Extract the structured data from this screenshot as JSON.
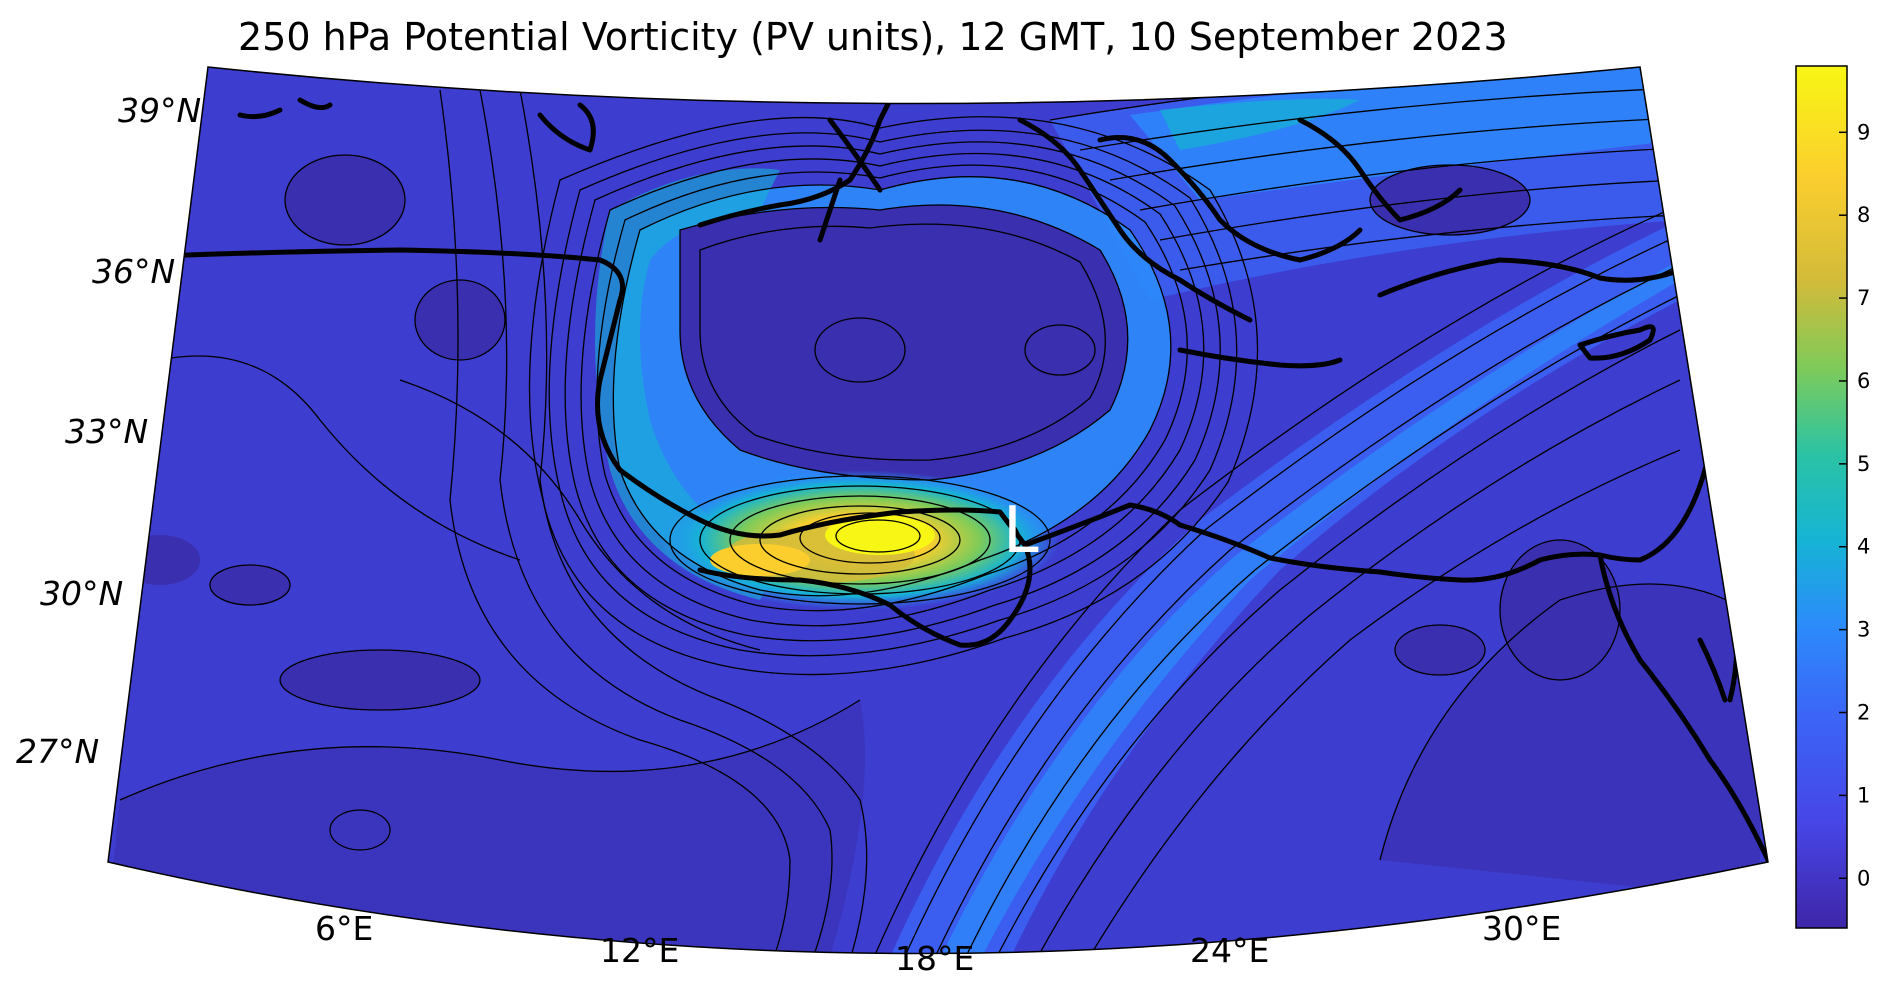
{
  "title": "250 hPa Potential Vorticity (PV units), 12 GMT, 10 September 2023",
  "latitude_labels": [
    "39°N",
    "36°N",
    "33°N",
    "30°N",
    "27°N"
  ],
  "longitude_labels": [
    "6°E",
    "12°E",
    "18°E",
    "24°E",
    "30°E"
  ],
  "low_marker": "L",
  "colorbar": {
    "ticks": [
      "9",
      "8",
      "7",
      "6",
      "5",
      "4",
      "3",
      "2",
      "1",
      "0"
    ],
    "range": [
      -0.6,
      9.8
    ],
    "colors": [
      "#3e26a8",
      "#4745e6",
      "#2c8bfb",
      "#16b4d4",
      "#2bc3a4",
      "#7ecb59",
      "#d2bb3a",
      "#fbce2e",
      "#f8f614"
    ]
  },
  "colors": {
    "background_field": "#3d3dcf",
    "low_pv": "#3a2fae",
    "coastline": "#000000"
  }
}
